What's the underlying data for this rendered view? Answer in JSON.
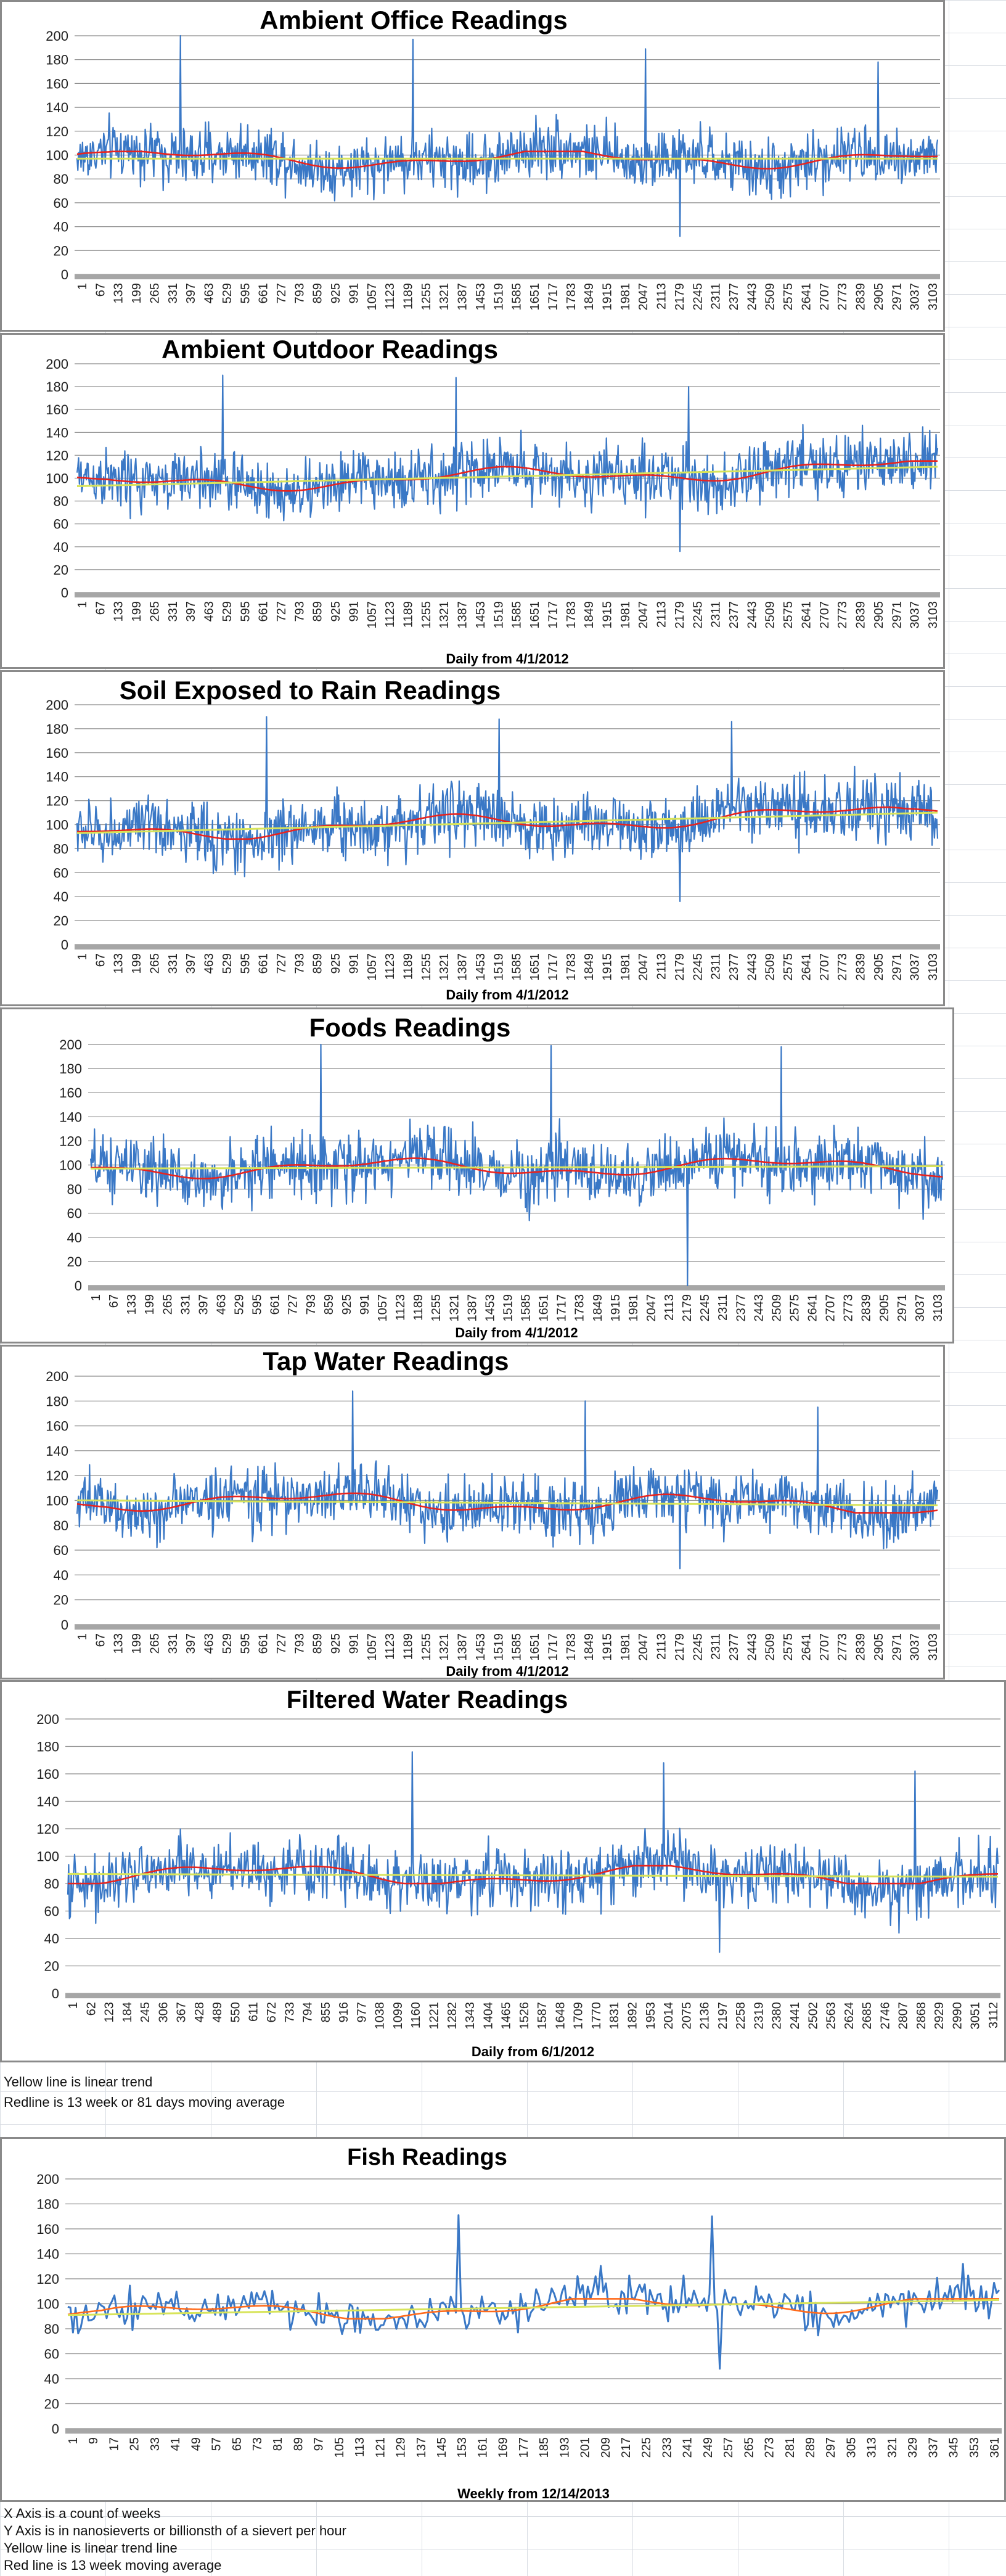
{
  "colors": {
    "data_line": "#3a78c6",
    "moving_average": "#e8231e",
    "moving_average_fish": "#ff6a1a",
    "trend_line": "#d8e45a",
    "grid": "#8c8c8c",
    "axis_band": "#a6a6a6"
  },
  "chart_data": [
    {
      "type": "line",
      "title": "Ambient Office Readings",
      "xlabel": "",
      "ylim": [
        0,
        200
      ],
      "yticks": [
        0,
        20,
        40,
        60,
        80,
        100,
        120,
        140,
        160,
        180,
        200
      ],
      "xticks": [
        "1",
        "67",
        "133",
        "199",
        "265",
        "331",
        "397",
        "463",
        "529",
        "595",
        "661",
        "727",
        "793",
        "859",
        "925",
        "991",
        "1057",
        "1123",
        "1189",
        "1255",
        "1321",
        "1387",
        "1453",
        "1519",
        "1585",
        "1651",
        "1717",
        "1783",
        "1849",
        "1915",
        "1981",
        "2047",
        "2113",
        "2179",
        "2245",
        "2311",
        "2377",
        "2443",
        "2509",
        "2575",
        "2641",
        "2707",
        "2773",
        "2839",
        "2905",
        "2971",
        "3037",
        "3103"
      ],
      "grid": true,
      "series": [
        {
          "role": "daily readings",
          "approx_mean": 97,
          "approx_spread": 22,
          "approx_peaks": [
            200,
            197,
            189,
            178
          ],
          "approx_min": 32
        },
        {
          "role": "moving average",
          "approx_range": [
            88,
            103
          ]
        },
        {
          "role": "linear trend",
          "values": [
            97,
            97
          ]
        }
      ]
    },
    {
      "type": "line",
      "title": "Ambient Outdoor Readings",
      "xlabel": "Daily from 4/1/2012",
      "ylim": [
        0,
        200
      ],
      "yticks": [
        0,
        20,
        40,
        60,
        80,
        100,
        120,
        140,
        160,
        180,
        200
      ],
      "xticks": [
        "1",
        "67",
        "133",
        "199",
        "265",
        "331",
        "397",
        "463",
        "529",
        "595",
        "661",
        "727",
        "793",
        "859",
        "925",
        "991",
        "1057",
        "1123",
        "1189",
        "1255",
        "1321",
        "1387",
        "1453",
        "1519",
        "1585",
        "1651",
        "1717",
        "1783",
        "1849",
        "1915",
        "1981",
        "2047",
        "2113",
        "2179",
        "2245",
        "2311",
        "2377",
        "2443",
        "2509",
        "2575",
        "2641",
        "2707",
        "2773",
        "2839",
        "2905",
        "2971",
        "3037",
        "3103"
      ],
      "grid": true,
      "series": [
        {
          "role": "daily readings",
          "approx_mean": 102,
          "approx_spread": 24,
          "approx_peaks": [
            190,
            188,
            180
          ],
          "approx_min": 36
        },
        {
          "role": "moving average",
          "approx_range": [
            88,
            115
          ]
        },
        {
          "role": "linear trend",
          "values": [
            93,
            110
          ]
        }
      ]
    },
    {
      "type": "line",
      "title": "Soil Exposed to Rain Readings",
      "xlabel": "Daily from 4/1/2012",
      "ylim": [
        0,
        200
      ],
      "yticks": [
        0,
        20,
        40,
        60,
        80,
        100,
        120,
        140,
        160,
        180,
        200
      ],
      "xticks": [
        "1",
        "67",
        "133",
        "199",
        "265",
        "331",
        "397",
        "463",
        "529",
        "595",
        "661",
        "727",
        "793",
        "859",
        "925",
        "991",
        "1057",
        "1123",
        "1189",
        "1255",
        "1321",
        "1387",
        "1453",
        "1519",
        "1585",
        "1651",
        "1717",
        "1783",
        "1849",
        "1915",
        "1981",
        "2047",
        "2113",
        "2179",
        "2245",
        "2311",
        "2377",
        "2443",
        "2509",
        "2575",
        "2641",
        "2707",
        "2773",
        "2839",
        "2905",
        "2971",
        "3037",
        "3103"
      ],
      "grid": true,
      "series": [
        {
          "role": "daily readings",
          "approx_mean": 102,
          "approx_spread": 24,
          "approx_peaks": [
            190,
            188,
            186
          ],
          "approx_min": 36
        },
        {
          "role": "moving average",
          "approx_range": [
            88,
            115
          ]
        },
        {
          "role": "linear trend",
          "values": [
            93,
            110
          ]
        }
      ]
    },
    {
      "type": "line",
      "title": "Foods Readings",
      "xlabel": "Daily from 4/1/2012",
      "ylim": [
        0,
        200
      ],
      "yticks": [
        0,
        20,
        40,
        60,
        80,
        100,
        120,
        140,
        160,
        180,
        200
      ],
      "xticks": [
        "1",
        "67",
        "133",
        "199",
        "265",
        "331",
        "397",
        "463",
        "529",
        "595",
        "661",
        "727",
        "793",
        "859",
        "925",
        "991",
        "1057",
        "1123",
        "1189",
        "1255",
        "1321",
        "1387",
        "1453",
        "1519",
        "1585",
        "1651",
        "1717",
        "1783",
        "1849",
        "1915",
        "1981",
        "2047",
        "2113",
        "2179",
        "2245",
        "2311",
        "2377",
        "2443",
        "2509",
        "2575",
        "2641",
        "2707",
        "2773",
        "2839",
        "2905",
        "2971",
        "3037",
        "3103"
      ],
      "grid": true,
      "series": [
        {
          "role": "daily readings",
          "approx_mean": 98,
          "approx_spread": 24,
          "approx_peaks": [
            200,
            199,
            198
          ],
          "approx_min": 0
        },
        {
          "role": "moving average",
          "approx_range": [
            85,
            116
          ]
        },
        {
          "role": "linear trend",
          "values": [
            97,
            99
          ]
        }
      ]
    },
    {
      "type": "line",
      "title": "Tap Water Readings",
      "xlabel": "Daily from 4/1/2012",
      "ylim": [
        0,
        200
      ],
      "yticks": [
        0,
        20,
        40,
        60,
        80,
        100,
        120,
        140,
        160,
        180,
        200
      ],
      "xticks": [
        "1",
        "67",
        "133",
        "199",
        "265",
        "331",
        "397",
        "463",
        "529",
        "595",
        "661",
        "727",
        "793",
        "859",
        "925",
        "991",
        "1057",
        "1123",
        "1189",
        "1255",
        "1321",
        "1387",
        "1453",
        "1519",
        "1585",
        "1651",
        "1717",
        "1783",
        "1849",
        "1915",
        "1981",
        "2047",
        "2113",
        "2179",
        "2245",
        "2311",
        "2377",
        "2443",
        "2509",
        "2575",
        "2641",
        "2707",
        "2773",
        "2839",
        "2905",
        "2971",
        "3037",
        "3103"
      ],
      "grid": true,
      "series": [
        {
          "role": "daily readings",
          "approx_mean": 98,
          "approx_spread": 22,
          "approx_peaks": [
            188,
            180,
            175
          ],
          "approx_min": 45
        },
        {
          "role": "moving average",
          "approx_range": [
            90,
            110
          ]
        },
        {
          "role": "linear trend",
          "values": [
            100,
            96
          ]
        }
      ]
    },
    {
      "type": "line",
      "title": "Filtered Water Readings",
      "xlabel": "Daily from 6/1/2012",
      "ylim": [
        0,
        200
      ],
      "yticks": [
        0,
        20,
        40,
        60,
        80,
        100,
        120,
        140,
        160,
        180,
        200
      ],
      "xticks": [
        "1",
        "62",
        "123",
        "184",
        "245",
        "306",
        "367",
        "428",
        "489",
        "550",
        "611",
        "672",
        "733",
        "794",
        "855",
        "916",
        "977",
        "1038",
        "1099",
        "1160",
        "1221",
        "1282",
        "1343",
        "1404",
        "1465",
        "1526",
        "1587",
        "1648",
        "1709",
        "1770",
        "1831",
        "1892",
        "1953",
        "2014",
        "2075",
        "2136",
        "2197",
        "2258",
        "2319",
        "2380",
        "2441",
        "2502",
        "2563",
        "2624",
        "2685",
        "2746",
        "2807",
        "2868",
        "2929",
        "2990",
        "3051",
        "3112"
      ],
      "grid": true,
      "series": [
        {
          "role": "daily readings",
          "approx_mean": 86,
          "approx_spread": 20,
          "approx_peaks": [
            176,
            168,
            162
          ],
          "approx_min": 30
        },
        {
          "role": "moving average",
          "approx_range": [
            80,
            93
          ]
        },
        {
          "role": "linear trend",
          "values": [
            87,
            85
          ]
        }
      ]
    },
    {
      "type": "line",
      "title": "Fish Readings",
      "xlabel": "Weekly from 12/14/2013",
      "ylim": [
        0,
        200
      ],
      "yticks": [
        0,
        20,
        40,
        60,
        80,
        100,
        120,
        140,
        160,
        180,
        200
      ],
      "xticks": [
        "1",
        "9",
        "17",
        "25",
        "33",
        "41",
        "49",
        "57",
        "65",
        "73",
        "81",
        "89",
        "97",
        "105",
        "113",
        "121",
        "129",
        "137",
        "145",
        "153",
        "161",
        "169",
        "177",
        "185",
        "193",
        "201",
        "209",
        "217",
        "225",
        "233",
        "241",
        "249",
        "257",
        "265",
        "273",
        "281",
        "289",
        "297",
        "305",
        "313",
        "321",
        "329",
        "337",
        "345",
        "353",
        "361"
      ],
      "grid": true,
      "series": [
        {
          "role": "weekly readings",
          "approx_mean": 97,
          "approx_spread": 15,
          "approx_peaks": [
            171,
            170,
            132
          ],
          "approx_min": 48
        },
        {
          "role": "moving average",
          "approx_range": [
            88,
            104
          ]
        },
        {
          "role": "linear trend",
          "values": [
            91,
            103
          ]
        }
      ]
    }
  ],
  "notes_middle": [
    "Yellow line is linear trend",
    "Redline is 13 week or 81 days moving average"
  ],
  "notes_bottom": [
    "X Axis is a count of weeks",
    "Y Axis is in nanosieverts or billionsth of a sievert per hour",
    "Yellow line is linear trend line",
    "Red line is 13 week moving average"
  ]
}
